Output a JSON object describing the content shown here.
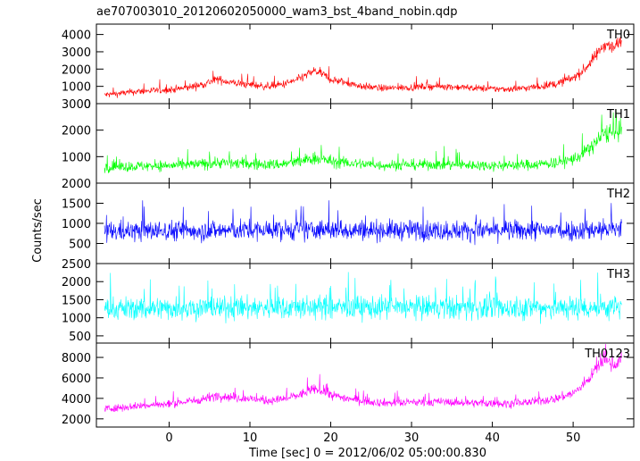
{
  "chart_data": {
    "type": "line",
    "title": "ae707003010_20120602050000_wam3_bst_4band_nobin.qdp",
    "xlabel": "Time [sec] 0 = 2012/06/02 05:00:00.830",
    "ylabel": "Counts/sec",
    "xlim": [
      -9,
      57.5
    ],
    "xticks": [
      0,
      10,
      20,
      30,
      40,
      50
    ],
    "grid": false,
    "panels": [
      {
        "name": "TH0",
        "color": "#ff0000",
        "ylim": [
          0,
          4600
        ],
        "yticks": [
          0,
          1000,
          2000,
          3000,
          4000
        ],
        "x": [
          -8,
          -6,
          -4,
          -2,
          0,
          2,
          4,
          6,
          8,
          10,
          12,
          14,
          16,
          18,
          19,
          20,
          22,
          24,
          26,
          28,
          30,
          32,
          34,
          36,
          38,
          40,
          42,
          44,
          46,
          48,
          50,
          51,
          52,
          53,
          54,
          55,
          56
        ],
        "y": [
          500,
          600,
          700,
          750,
          800,
          900,
          1100,
          1400,
          1200,
          1100,
          1000,
          1100,
          1400,
          1900,
          1700,
          1400,
          1200,
          1000,
          900,
          900,
          950,
          1000,
          1000,
          950,
          900,
          850,
          850,
          900,
          1000,
          1150,
          1500,
          1800,
          2300,
          2900,
          3500,
          3200,
          3700
        ],
        "spread": [
          250,
          250,
          260,
          260,
          270,
          280,
          300,
          320,
          300,
          300,
          280,
          300,
          320,
          360,
          340,
          320,
          300,
          280,
          260,
          260,
          260,
          260,
          260,
          260,
          260,
          260,
          260,
          260,
          280,
          300,
          340,
          380,
          420,
          480,
          520,
          520,
          560
        ]
      },
      {
        "name": "TH1",
        "color": "#00ff00",
        "ylim": [
          0,
          3000
        ],
        "yticks": [
          1000,
          2000,
          3000
        ],
        "x": [
          -8,
          -6,
          -4,
          -2,
          0,
          2,
          4,
          6,
          8,
          10,
          12,
          14,
          16,
          18,
          19,
          20,
          22,
          24,
          26,
          28,
          30,
          32,
          34,
          36,
          38,
          40,
          42,
          44,
          46,
          48,
          50,
          51,
          52,
          53,
          54,
          55,
          56
        ],
        "y": [
          600,
          620,
          640,
          650,
          660,
          680,
          720,
          780,
          750,
          720,
          700,
          720,
          800,
          950,
          900,
          820,
          760,
          720,
          680,
          680,
          690,
          700,
          700,
          690,
          680,
          670,
          670,
          690,
          720,
          780,
          900,
          1050,
          1300,
          1600,
          1900,
          1800,
          2000
        ],
        "spread": [
          260,
          260,
          260,
          260,
          260,
          270,
          280,
          290,
          280,
          280,
          270,
          280,
          300,
          320,
          310,
          300,
          280,
          270,
          260,
          260,
          260,
          260,
          260,
          260,
          260,
          260,
          260,
          260,
          270,
          290,
          320,
          350,
          380,
          420,
          460,
          460,
          480
        ]
      },
      {
        "name": "TH2",
        "color": "#0000ff",
        "ylim": [
          0,
          2000
        ],
        "yticks": [
          500,
          1000,
          1500,
          2000
        ],
        "x": [
          -8,
          0,
          10,
          20,
          30,
          40,
          50,
          56
        ],
        "y": [
          800,
          820,
          830,
          840,
          830,
          820,
          830,
          870
        ],
        "spread": [
          330,
          330,
          330,
          330,
          330,
          330,
          340,
          360
        ]
      },
      {
        "name": "TH3",
        "color": "#00ffff",
        "ylim": [
          300,
          2500
        ],
        "yticks": [
          500,
          1000,
          1500,
          2000,
          2500
        ],
        "x": [
          -8,
          0,
          10,
          20,
          30,
          40,
          50,
          56
        ],
        "y": [
          1250,
          1270,
          1280,
          1290,
          1280,
          1270,
          1280,
          1300
        ],
        "spread": [
          420,
          420,
          420,
          420,
          420,
          420,
          430,
          440
        ]
      },
      {
        "name": "TH0123",
        "color": "#ff00ff",
        "ylim": [
          1200,
          9400
        ],
        "yticks": [
          2000,
          4000,
          6000,
          8000
        ],
        "x": [
          -8,
          -6,
          -4,
          -2,
          0,
          2,
          4,
          6,
          8,
          10,
          12,
          14,
          16,
          18,
          19,
          20,
          22,
          24,
          26,
          28,
          30,
          32,
          34,
          36,
          38,
          40,
          42,
          44,
          46,
          48,
          50,
          51,
          52,
          53,
          54,
          55,
          56
        ],
        "y": [
          3000,
          3100,
          3250,
          3350,
          3450,
          3650,
          3900,
          4300,
          4100,
          3950,
          3800,
          3900,
          4300,
          4900,
          4700,
          4350,
          4000,
          3750,
          3600,
          3550,
          3600,
          3650,
          3650,
          3600,
          3550,
          3500,
          3500,
          3600,
          3750,
          4000,
          4500,
          5100,
          6000,
          7000,
          7800,
          7300,
          7900
        ],
        "spread": [
          500,
          500,
          500,
          510,
          520,
          530,
          560,
          600,
          570,
          560,
          540,
          560,
          600,
          660,
          640,
          600,
          560,
          540,
          520,
          520,
          520,
          520,
          520,
          520,
          520,
          520,
          520,
          520,
          540,
          570,
          620,
          680,
          740,
          820,
          900,
          900,
          940
        ]
      }
    ]
  }
}
